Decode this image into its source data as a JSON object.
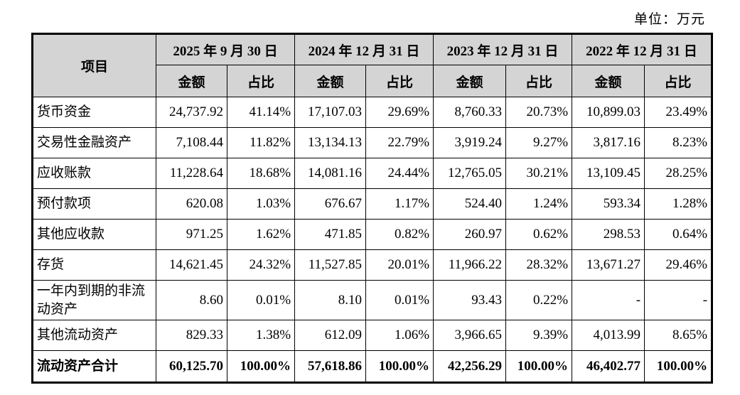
{
  "unit_label": "单位：万元",
  "colors": {
    "header_bg": "#d4d4d4",
    "border": "#000000",
    "text": "#000000"
  },
  "table": {
    "item_header": "项目",
    "period_headers": [
      "2025 年 9 月 30 日",
      "2024 年 12 月 31 日",
      "2023 年 12 月 31 日",
      "2022 年 12 月 31 日"
    ],
    "sub_headers": {
      "amount": "金额",
      "ratio": "占比"
    },
    "rows": [
      {
        "item": "货币资金",
        "values": [
          "24,737.92",
          "41.14%",
          "17,107.03",
          "29.69%",
          "8,760.33",
          "20.73%",
          "10,899.03",
          "23.49%"
        ],
        "bold": false,
        "two_line": false
      },
      {
        "item": "交易性金融资产",
        "values": [
          "7,108.44",
          "11.82%",
          "13,134.13",
          "22.79%",
          "3,919.24",
          "9.27%",
          "3,817.16",
          "8.23%"
        ],
        "bold": false,
        "two_line": false
      },
      {
        "item": "应收账款",
        "values": [
          "11,228.64",
          "18.68%",
          "14,081.16",
          "24.44%",
          "12,765.05",
          "30.21%",
          "13,109.45",
          "28.25%"
        ],
        "bold": false,
        "two_line": false
      },
      {
        "item": "预付款项",
        "values": [
          "620.08",
          "1.03%",
          "676.67",
          "1.17%",
          "524.40",
          "1.24%",
          "593.34",
          "1.28%"
        ],
        "bold": false,
        "two_line": false
      },
      {
        "item": "其他应收款",
        "values": [
          "971.25",
          "1.62%",
          "471.85",
          "0.82%",
          "260.97",
          "0.62%",
          "298.53",
          "0.64%"
        ],
        "bold": false,
        "two_line": false
      },
      {
        "item": "存货",
        "values": [
          "14,621.45",
          "24.32%",
          "11,527.85",
          "20.01%",
          "11,966.22",
          "28.32%",
          "13,671.27",
          "29.46%"
        ],
        "bold": false,
        "two_line": false
      },
      {
        "item": "一年内到期的非流动资产",
        "values": [
          "8.60",
          "0.01%",
          "8.10",
          "0.01%",
          "93.43",
          "0.22%",
          "-",
          "-"
        ],
        "bold": false,
        "two_line": true
      },
      {
        "item": "其他流动资产",
        "values": [
          "829.33",
          "1.38%",
          "612.09",
          "1.06%",
          "3,966.65",
          "9.39%",
          "4,013.99",
          "8.65%"
        ],
        "bold": false,
        "two_line": false
      },
      {
        "item": "流动资产合计",
        "values": [
          "60,125.70",
          "100.00%",
          "57,618.86",
          "100.00%",
          "42,256.29",
          "100.00%",
          "46,402.77",
          "100.00%"
        ],
        "bold": true,
        "two_line": false
      }
    ]
  }
}
